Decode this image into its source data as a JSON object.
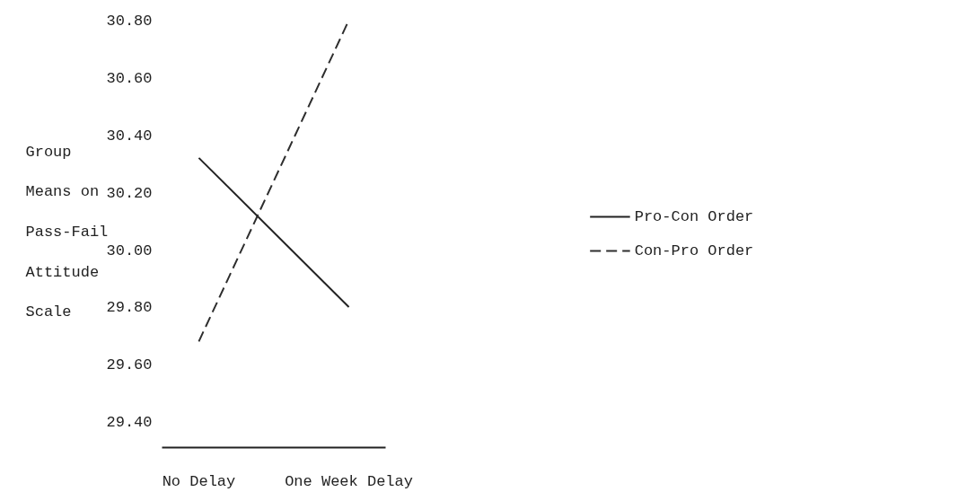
{
  "chart_data": {
    "type": "line",
    "ylabel": "Group\nMeans on\nPass-Fail\nAttitude\nScale",
    "categories": [
      "No Delay",
      "One Week Delay"
    ],
    "series": [
      {
        "name": "Pro-Con Order",
        "color": "#222222",
        "values": [
          30.32,
          29.8
        ],
        "line_style": "solid"
      },
      {
        "name": "Con-Pro Order",
        "color": "#2e2e2e",
        "values": [
          29.68,
          30.8
        ],
        "line_style": "dashed"
      }
    ],
    "ylim": [
      29.31,
      30.8
    ],
    "yticks": [
      {
        "value": 29.4,
        "label": "29.40"
      },
      {
        "value": 29.6,
        "label": "29.60"
      },
      {
        "value": 29.8,
        "label": "29.80"
      },
      {
        "value": 30.0,
        "label": "30.00"
      },
      {
        "value": 30.2,
        "label": "30.20"
      },
      {
        "value": 30.4,
        "label": "30.40"
      },
      {
        "value": 30.6,
        "label": "30.60"
      },
      {
        "value": 30.8,
        "label": "30.80"
      }
    ],
    "grid": false,
    "legend": "right",
    "marker": "none"
  }
}
